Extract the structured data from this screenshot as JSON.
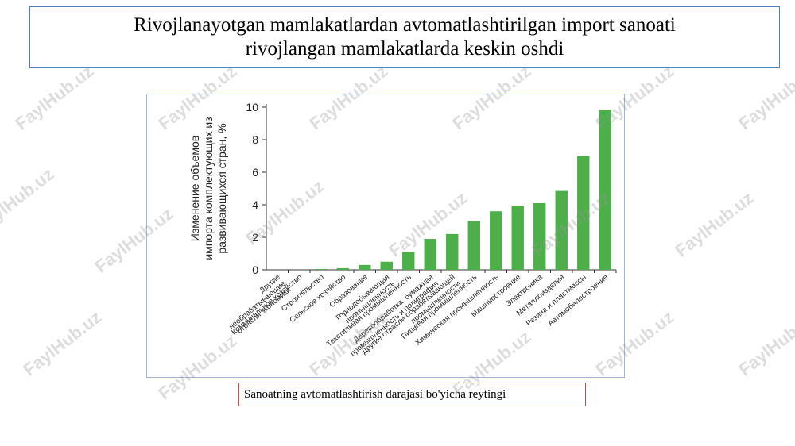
{
  "title": {
    "line1": "Rivojlanayotgan mamlakatlardan avtomatlashtirilgan import sanoati",
    "line2": "rivojlangan mamlakatlarda keskin oshdi"
  },
  "caption": "Sanoatning avtomatlashtirish darajasi bo'yicha reytingi",
  "watermark": "FaylHub.uz",
  "colors": {
    "bar": "#4daf4a",
    "title_border": "#4f81bd",
    "caption_border": "#c0504d"
  },
  "chart_data": {
    "type": "bar",
    "ylabel_lines": [
      "Изменение объемов",
      "импорта комплектующих из",
      "развивающихся стран, %"
    ],
    "ylim": [
      0,
      10
    ],
    "yticks": [
      0,
      2,
      4,
      6,
      8,
      10
    ],
    "grid": false,
    "categories": [
      [
        "Другие",
        "необрабатывающие",
        "отрасли экономики"
      ],
      [
        "Коммунальное хозяйство"
      ],
      [
        "Строительство"
      ],
      [
        "Сельское хозяйство"
      ],
      [
        "Образование"
      ],
      [
        "Горнодобывающая",
        "промышленность"
      ],
      [
        "Текстильная промышленность"
      ],
      [
        "Деревообработка, бумажная",
        "промышленность и полиграфия"
      ],
      [
        "Другие отрасли обрабатывающей",
        "промышленности"
      ],
      [
        "Пищевая промышленность"
      ],
      [
        "Химическая промышленность"
      ],
      [
        "Машиностроение"
      ],
      [
        "Электроника"
      ],
      [
        "Металлоизделия"
      ],
      [
        "Резина и пластмассы"
      ],
      [
        "Автомобилестроение"
      ]
    ],
    "values": [
      0.0,
      0.0,
      0.05,
      0.1,
      0.3,
      0.5,
      1.1,
      1.9,
      2.2,
      3.0,
      3.6,
      3.95,
      4.1,
      4.85,
      7.0,
      9.85
    ]
  }
}
